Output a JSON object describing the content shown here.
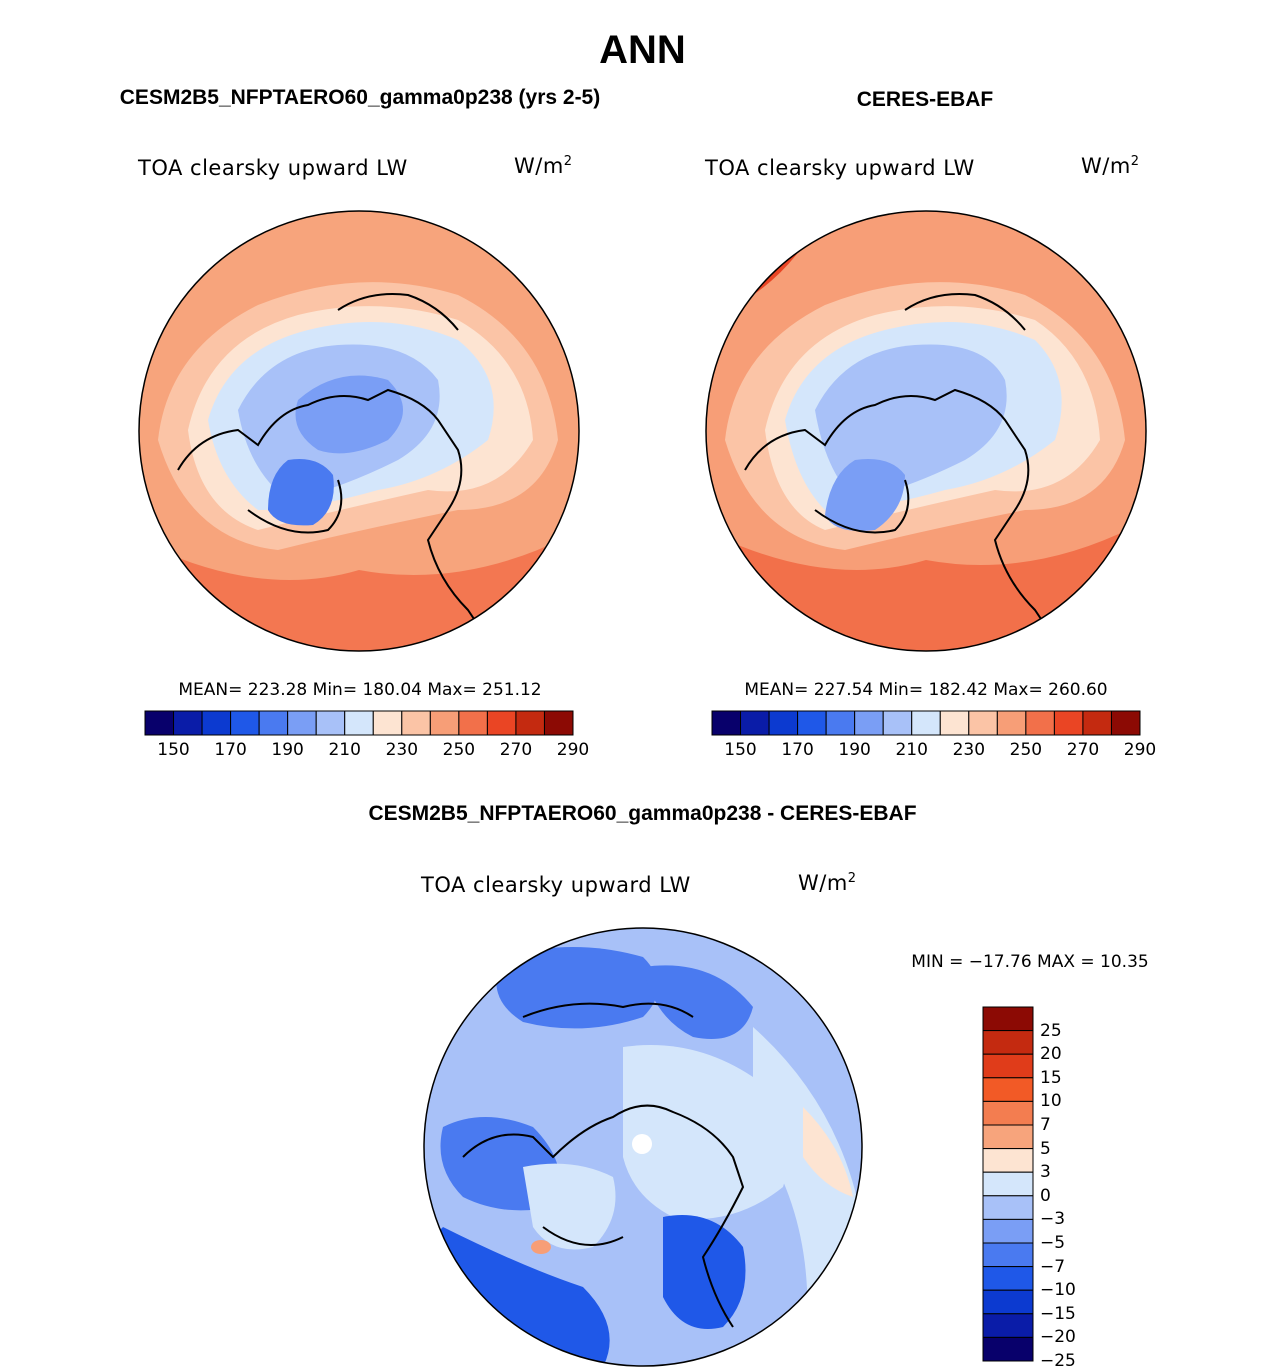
{
  "figure": {
    "title": "ANN"
  },
  "panels": [
    {
      "id": "model",
      "header": "CESM2B5_NFPTAERO60_gamma0p238 (yrs 2-5)",
      "variable": "TOA clearsky upward LW",
      "units_base": "W/m",
      "units_exp": "2",
      "stats": "MEAN= 223.28   Min= 180.04   Max= 251.12"
    },
    {
      "id": "obs",
      "header": "CERES-EBAF",
      "variable": "TOA clearsky upward LW",
      "units_base": "W/m",
      "units_exp": "2",
      "stats": "MEAN= 227.54   Min= 182.42   Max= 260.60"
    },
    {
      "id": "diff",
      "header": "CESM2B5_NFPTAERO60_gamma0p238 - CERES-EBAF",
      "variable": "TOA clearsky upward LW",
      "units_base": "W/m",
      "units_exp": "2",
      "stats": "MIN = −17.76 MAX =  10.35"
    }
  ],
  "colorbar_abs": {
    "colors": [
      "#08006b",
      "#0a1ca8",
      "#0c3ad0",
      "#1f58e8",
      "#4a7af0",
      "#7a9ef5",
      "#a8c1f8",
      "#d4e6fb",
      "#fde4d2",
      "#fbc4a6",
      "#f79e77",
      "#f2704a",
      "#ea4524",
      "#c42a10",
      "#8c0a04"
    ],
    "tick_labels": [
      "150",
      "170",
      "190",
      "210",
      "230",
      "250",
      "270",
      "290"
    ]
  },
  "colorbar_diff": {
    "colors": [
      "#8c0a04",
      "#c42a10",
      "#e03c1a",
      "#f25a26",
      "#f37d50",
      "#f7a47c",
      "#fde4d2",
      "#d4e6fb",
      "#a8c1f8",
      "#7a9ef5",
      "#4a7af0",
      "#1f58e8",
      "#0c3ad0",
      "#0a1ca8",
      "#08006b"
    ],
    "tick_labels": [
      "25",
      "20",
      "15",
      "10",
      "7",
      "5",
      "3",
      "0",
      "−3",
      "−5",
      "−7",
      "−10",
      "−15",
      "−20",
      "−25"
    ]
  },
  "map_colors": {
    "abs_outer_model": "#f7a47c",
    "abs_outer_obs": "#f2704a",
    "diff_base": "#a8c1f8"
  }
}
